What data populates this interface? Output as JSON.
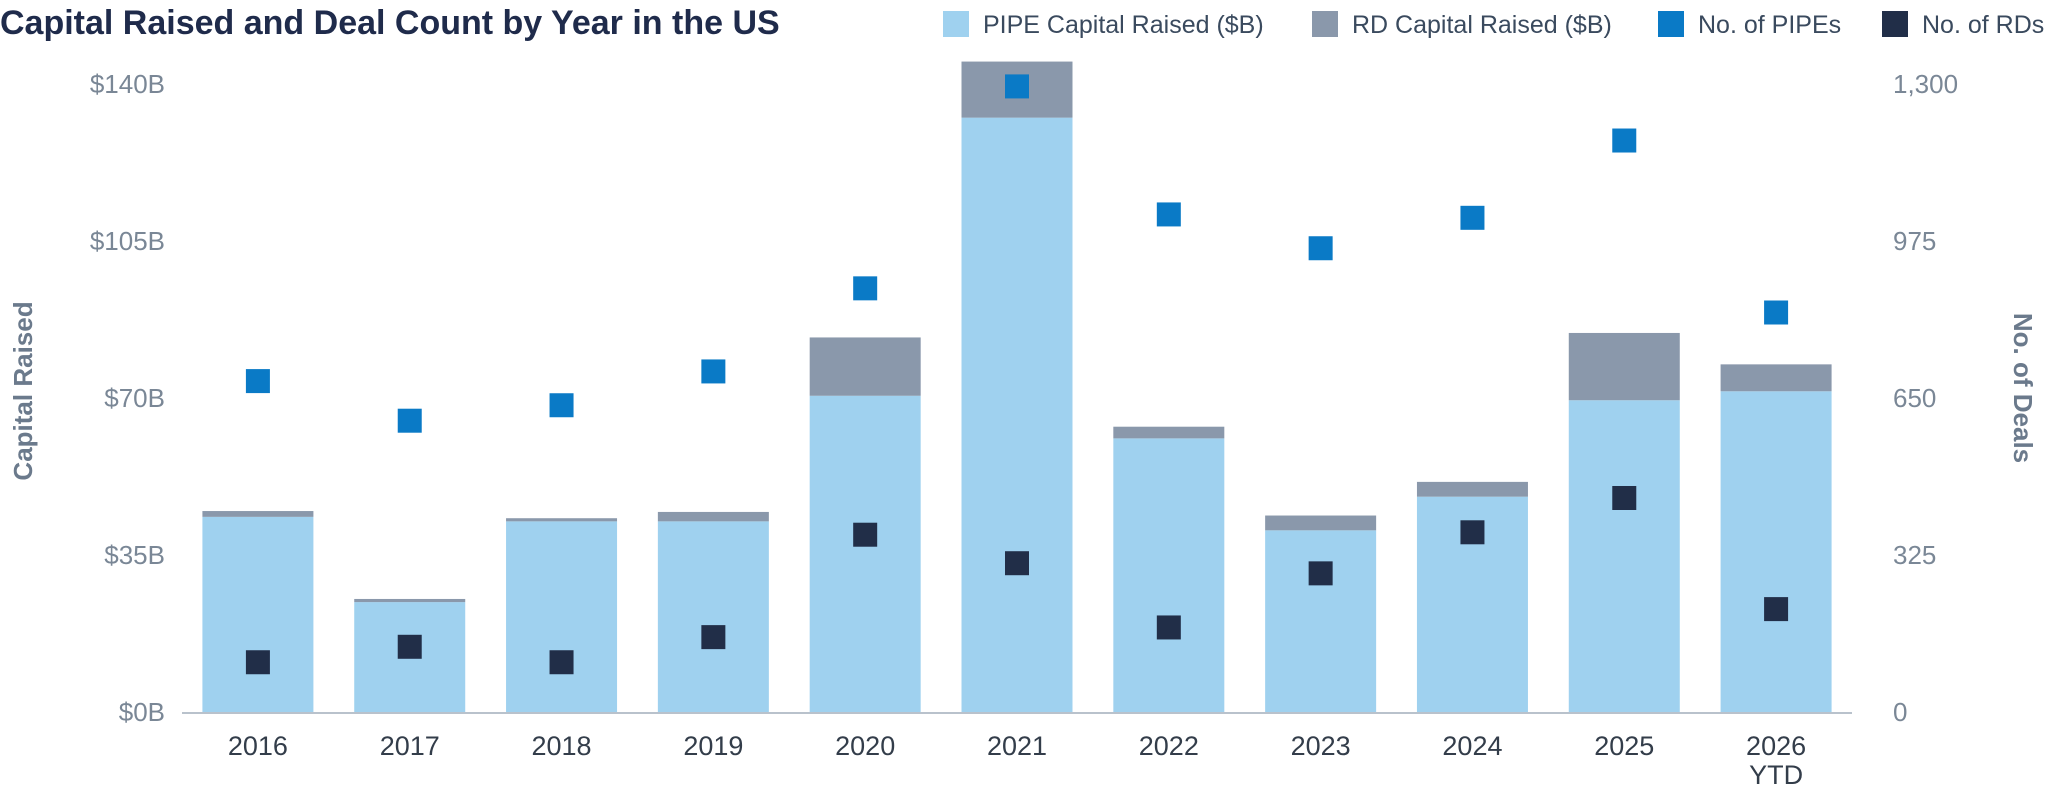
{
  "chart_data": {
    "type": "bar",
    "title": "Capital Raised and Deal Count by Year in the US",
    "categories": [
      "2016",
      "2017",
      "2018",
      "2019",
      "2020",
      "2021",
      "2022",
      "2023",
      "2024",
      "2025",
      "2026 YTD"
    ],
    "series": [
      {
        "name": "PIPE Capital Raised ($B)",
        "kind": "bar",
        "axis": "left",
        "color": "#9fd1ef",
        "values": [
          43.5,
          24.5,
          42.5,
          42.5,
          70.5,
          132.5,
          61.0,
          40.5,
          48.0,
          69.5,
          71.5
        ]
      },
      {
        "name": "RD Capital Raised ($B)",
        "kind": "bar",
        "axis": "left",
        "color": "#8a98ab",
        "values": [
          1.3,
          0.7,
          0.7,
          2.1,
          13.0,
          12.5,
          2.6,
          3.3,
          3.3,
          15.0,
          6.0
        ]
      },
      {
        "name": "No. of PIPEs",
        "kind": "scatter",
        "axis": "right",
        "color": "#0a7ac6",
        "values": [
          685,
          603,
          635,
          705,
          877,
          1295,
          1030,
          960,
          1023,
          1183,
          827
        ]
      },
      {
        "name": "No. of RDs",
        "kind": "scatter",
        "axis": "right",
        "color": "#212e48",
        "values": [
          103,
          135,
          103,
          155,
          367,
          308,
          175,
          287,
          372,
          443,
          213
        ]
      }
    ],
    "ylabel": "Capital Raised",
    "y2label": "No. of Deals",
    "ylim": [
      0,
      140
    ],
    "y2lim": [
      0,
      1300
    ],
    "yticks": [
      "$0B",
      "$35B",
      "$70B",
      "$105B",
      "$140B"
    ],
    "y2ticks": [
      "0",
      "325",
      "650",
      "975",
      "1,300"
    ],
    "grid": false,
    "legend_position": "top-right"
  }
}
